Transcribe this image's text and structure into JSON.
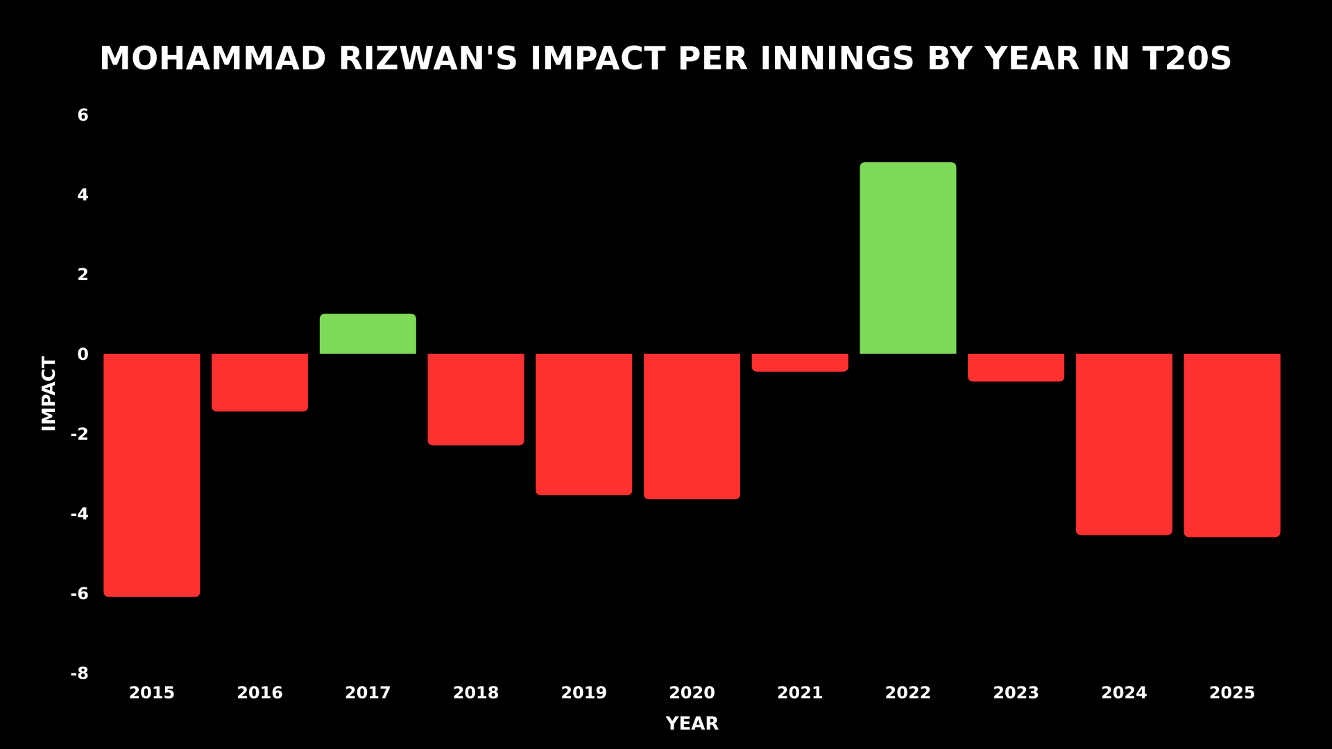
{
  "chart_data": {
    "type": "bar",
    "title": "MOHAMMAD RIZWAN'S IMPACT PER INNINGS BY YEAR IN T20S",
    "xlabel": "YEAR",
    "ylabel": "IMPACT",
    "ylim": [
      -8,
      6
    ],
    "yticks": [
      -8,
      -6,
      -4,
      -2,
      0,
      2,
      4,
      6
    ],
    "categories": [
      "2015",
      "2016",
      "2017",
      "2018",
      "2019",
      "2020",
      "2021",
      "2022",
      "2023",
      "2024",
      "2025"
    ],
    "values": [
      -6.1,
      -1.45,
      1.0,
      -2.3,
      -3.55,
      -3.65,
      -0.45,
      4.8,
      -0.7,
      -4.55,
      -4.6
    ],
    "grid": false,
    "legend": "none",
    "colors": {
      "positive": "#7ED957",
      "negative": "#FF3131",
      "background": "#000000",
      "text": "#FFFFFF"
    }
  }
}
